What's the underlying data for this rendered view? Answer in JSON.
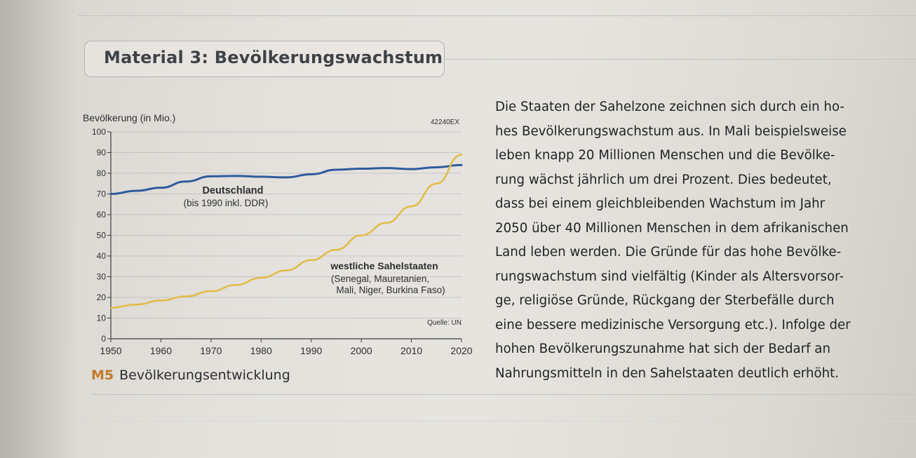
{
  "material_title": "Material 3: Bevölkerungswachstum",
  "caption": {
    "label": "M5",
    "text": "Bevölkerungsentwicklung"
  },
  "body_lines": [
    "Die Staaten der Sahelzone zeichnen sich durch ein ho-",
    "hes Bevölkerungswachstum aus. In Mali beispielsweise",
    "leben knapp 20 Millionen Menschen und die Bevölke-",
    "rung wächst jährlich um drei Prozent. Dies bedeutet,",
    "dass bei einem gleichbleibenden Wachstum im Jahr",
    "2050 über 40 Millionen Menschen in dem afrikanischen",
    "Land leben werden. Die Gründe für das hohe Bevölke-",
    "rungswachstum sind vielfältig (Kinder als Altersvorsor-",
    "ge, religiöse Gründe, Rückgang der Sterbefälle durch",
    "eine bessere medizinische Versorgung etc.). Infolge der",
    "hohen Bevölkerungszunahme hat sich der Bedarf an",
    "Nahrungsmitteln in den Sahelstaaten deutlich erhöht."
  ],
  "colors": {
    "germany": "#2f5b9e",
    "sahel": "#e2bb45",
    "m5": "#c07a2a"
  },
  "chart_data": {
    "type": "line",
    "ylabel": "Bevölkerung (in Mio.)",
    "code": "42240EX",
    "source": "Quelle: UN",
    "ylim": [
      0,
      100
    ],
    "xlim": [
      1950,
      2020
    ],
    "x_ticks": [
      "1950",
      "1960",
      "1970",
      "1980",
      "1990",
      "2000",
      "2010",
      "2020"
    ],
    "y_ticks": [
      "0",
      "10",
      "20",
      "30",
      "40",
      "50",
      "60",
      "70",
      "80",
      "90",
      "100"
    ],
    "grid": "horizontal",
    "series": [
      {
        "name": "Deutschland",
        "name_sub": "(bis 1990 inkl. DDR)",
        "x": [
          1950,
          1955,
          1960,
          1965,
          1970,
          1975,
          1980,
          1985,
          1990,
          1995,
          2000,
          2005,
          2010,
          2015,
          2020
        ],
        "y": [
          70,
          71.5,
          73,
          76,
          78.5,
          78.7,
          78.3,
          78,
          79.5,
          81.7,
          82.2,
          82.5,
          82,
          82.9,
          84
        ]
      },
      {
        "name": "westliche Sahelstaaten",
        "name_sub": "(Senegal, Mauretanien,",
        "name_sub2": "Mali, Niger, Burkina Faso)",
        "x": [
          1950,
          1955,
          1960,
          1965,
          1970,
          1975,
          1980,
          1985,
          1990,
          1995,
          2000,
          2005,
          2010,
          2015,
          2020
        ],
        "y": [
          15,
          16.5,
          18.5,
          20.5,
          23,
          26,
          29.5,
          33,
          38,
          43,
          50,
          56,
          64,
          75,
          89
        ]
      }
    ]
  }
}
